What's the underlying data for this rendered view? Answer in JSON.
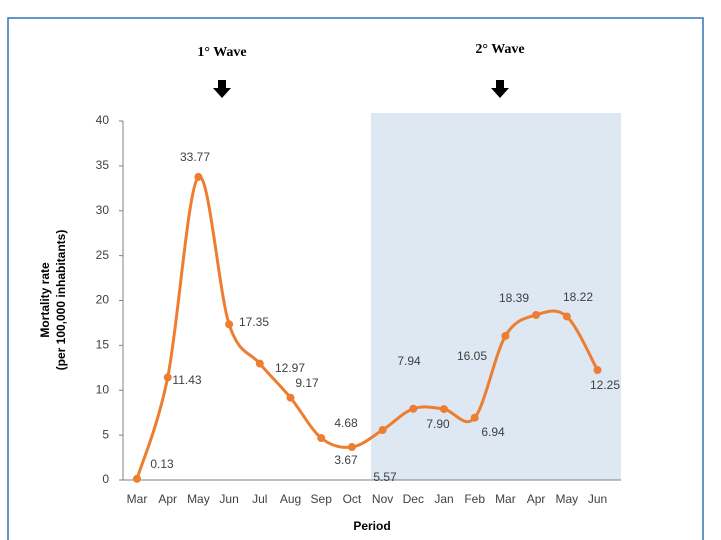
{
  "chart_data": {
    "type": "line",
    "y_label": [
      "Mortality rate",
      "(per 100,000 inhabitants)"
    ],
    "x_label": "Period",
    "annotations": [
      "1° Wave",
      "2° Wave"
    ],
    "categories": [
      "Mar",
      "Apr",
      "May",
      "Jun",
      "Jul",
      "Aug",
      "Sep",
      "Oct",
      "Nov",
      "Dec",
      "Jan",
      "Feb",
      "Mar",
      "Apr",
      "May",
      "Jun"
    ],
    "values": [
      0.13,
      11.43,
      33.77,
      17.35,
      12.97,
      9.17,
      4.68,
      3.67,
      5.57,
      7.94,
      7.9,
      6.94,
      16.05,
      18.39,
      18.22,
      12.25
    ],
    "value_labels": [
      "0.13",
      "11.43",
      "33.77",
      "17.35",
      "12.97",
      "9.17",
      "4.68",
      "3.67",
      "5.57",
      "7.94",
      "7.90",
      "6.94",
      "16.05",
      "18.39",
      "18.22",
      "12.25"
    ],
    "color": "#ED7D31",
    "ylim": [
      0,
      40
    ],
    "yticks": [
      0,
      5,
      10,
      15,
      20,
      25,
      30,
      35,
      40
    ]
  }
}
